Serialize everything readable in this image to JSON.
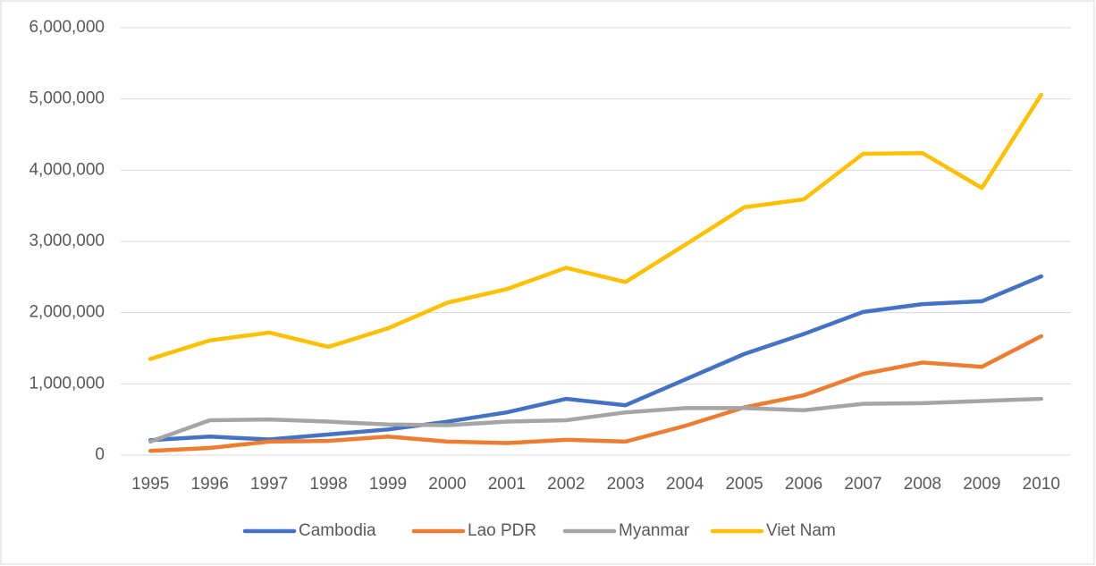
{
  "chart_data": {
    "type": "line",
    "categories": [
      "1995",
      "1996",
      "1997",
      "1998",
      "1999",
      "2000",
      "2001",
      "2002",
      "2003",
      "2004",
      "2005",
      "2006",
      "2007",
      "2008",
      "2009",
      "2010"
    ],
    "series": [
      {
        "name": "Cambodia",
        "color": "#4472c4",
        "values": [
          210000,
          260000,
          220000,
          290000,
          360000,
          470000,
          600000,
          790000,
          700000,
          1060000,
          1420000,
          1700000,
          2010000,
          2120000,
          2160000,
          2510000
        ]
      },
      {
        "name": "Lao PDR",
        "color": "#ed7d31",
        "values": [
          60000,
          100000,
          190000,
          200000,
          260000,
          190000,
          170000,
          215000,
          190000,
          410000,
          670000,
          840000,
          1140000,
          1300000,
          1240000,
          1670000
        ]
      },
      {
        "name": "Myanmar",
        "color": "#a5a5a5",
        "values": [
          190000,
          490000,
          500000,
          470000,
          430000,
          420000,
          470000,
          490000,
          600000,
          660000,
          660000,
          630000,
          720000,
          730000,
          760000,
          790000
        ]
      },
      {
        "name": "Viet Nam",
        "color": "#ffc000",
        "values": [
          1350000,
          1610000,
          1720000,
          1520000,
          1780000,
          2140000,
          2330000,
          2630000,
          2430000,
          2950000,
          3480000,
          3590000,
          4230000,
          4240000,
          3750000,
          5060000
        ]
      }
    ],
    "ylim": [
      0,
      6000000
    ],
    "yticks": [
      0,
      {
        "value": 1000000,
        "label": "1,000,000"
      },
      {
        "value": 2000000,
        "label": "2,000,000"
      },
      {
        "value": 3000000,
        "label": "3,000,000"
      },
      {
        "value": 4000000,
        "label": "4,000,000"
      },
      {
        "value": 5000000,
        "label": "5,000,000"
      },
      {
        "value": 6000000,
        "label": "6,000,000"
      }
    ],
    "grid": true,
    "legend": "bottom"
  }
}
